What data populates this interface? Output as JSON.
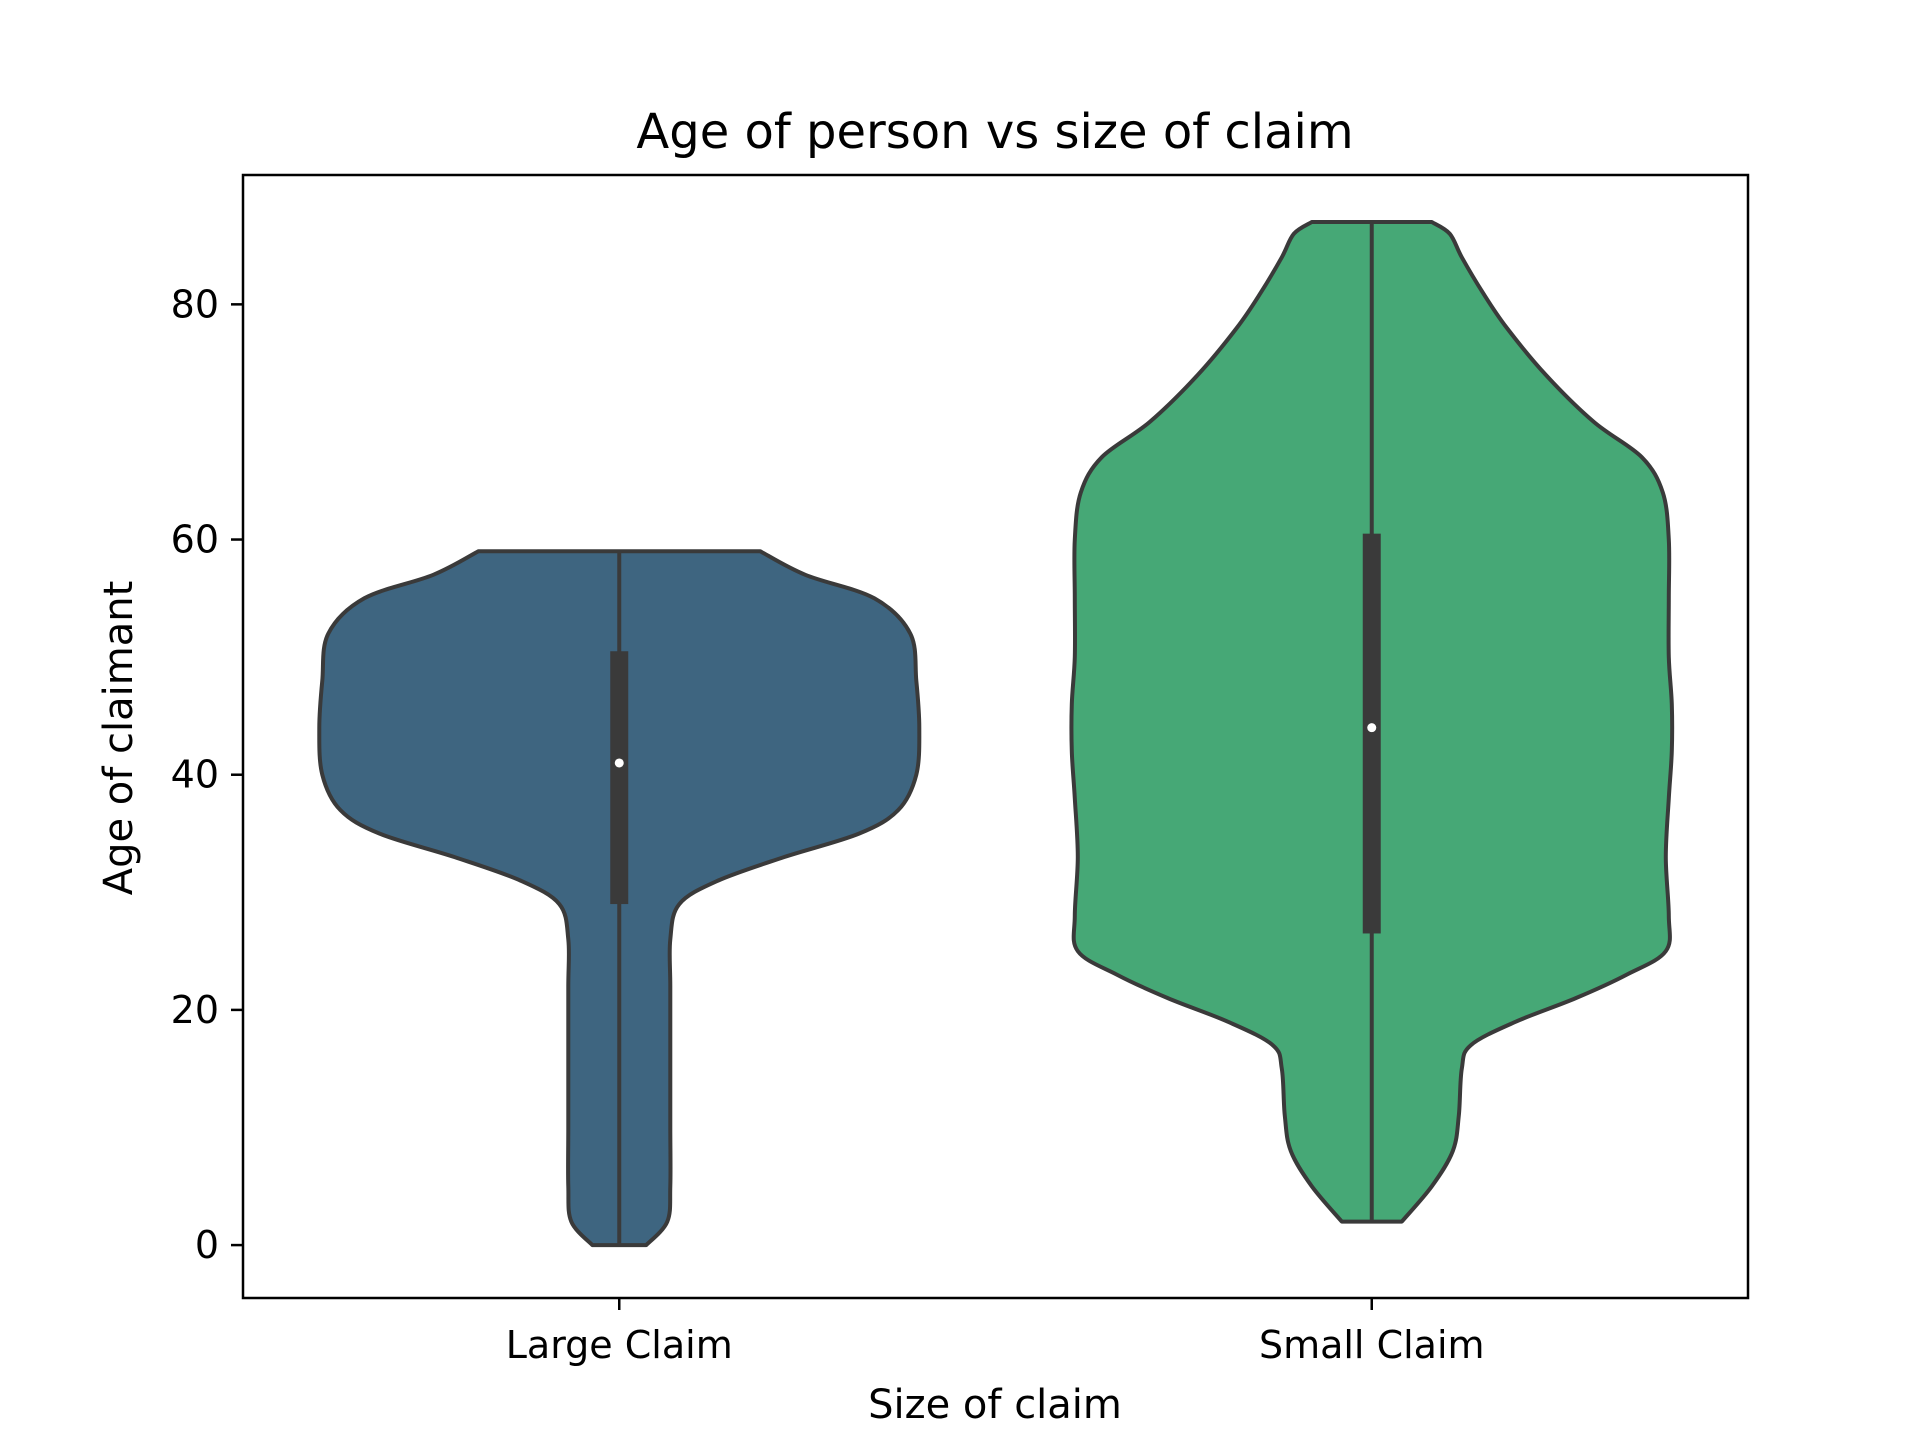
{
  "chart_data": {
    "type": "violin",
    "title": "Age of person vs size of claim",
    "xlabel": "Size of claim",
    "ylabel": "Age of claimant",
    "categories": [
      "Large Claim",
      "Small Claim"
    ],
    "ylim": [
      -4.5,
      91
    ],
    "yticks": [
      0,
      20,
      40,
      60,
      80
    ],
    "ytick_labels": [
      "0",
      "20",
      "40",
      "60",
      "80"
    ],
    "grid": false,
    "legend": "none",
    "series": [
      {
        "category": "Large Claim",
        "color": "#3e6580",
        "min": 0,
        "max": 59,
        "q1": 29,
        "median": 41,
        "q3": 50.5,
        "density_profile": [
          [
            0,
            0.09
          ],
          [
            2,
            0.16
          ],
          [
            5,
            0.17
          ],
          [
            10,
            0.17
          ],
          [
            16,
            0.17
          ],
          [
            22,
            0.17
          ],
          [
            26,
            0.17
          ],
          [
            29,
            0.2
          ],
          [
            31,
            0.33
          ],
          [
            33,
            0.55
          ],
          [
            35,
            0.8
          ],
          [
            37,
            0.93
          ],
          [
            40,
            0.99
          ],
          [
            44,
            1.0
          ],
          [
            48,
            0.99
          ],
          [
            52,
            0.97
          ],
          [
            55,
            0.85
          ],
          [
            57,
            0.62
          ],
          [
            59,
            0.47
          ]
        ]
      },
      {
        "category": "Small Claim",
        "color": "#46a876",
        "min": 2,
        "max": 87,
        "q1": 26.5,
        "median": 44,
        "q3": 60.5,
        "density_profile": [
          [
            2,
            0.1
          ],
          [
            5,
            0.2
          ],
          [
            8,
            0.27
          ],
          [
            11,
            0.29
          ],
          [
            15,
            0.3
          ],
          [
            17,
            0.33
          ],
          [
            19,
            0.48
          ],
          [
            21,
            0.68
          ],
          [
            23,
            0.85
          ],
          [
            25,
            0.98
          ],
          [
            28,
            0.99
          ],
          [
            33,
            0.98
          ],
          [
            38,
            0.99
          ],
          [
            42,
            1.0
          ],
          [
            46,
            1.0
          ],
          [
            50,
            0.99
          ],
          [
            55,
            0.99
          ],
          [
            60,
            0.99
          ],
          [
            64,
            0.97
          ],
          [
            67,
            0.9
          ],
          [
            70,
            0.74
          ],
          [
            74,
            0.58
          ],
          [
            78,
            0.45
          ],
          [
            81,
            0.37
          ],
          [
            84,
            0.3
          ],
          [
            86,
            0.26
          ],
          [
            87,
            0.2
          ]
        ]
      }
    ]
  }
}
